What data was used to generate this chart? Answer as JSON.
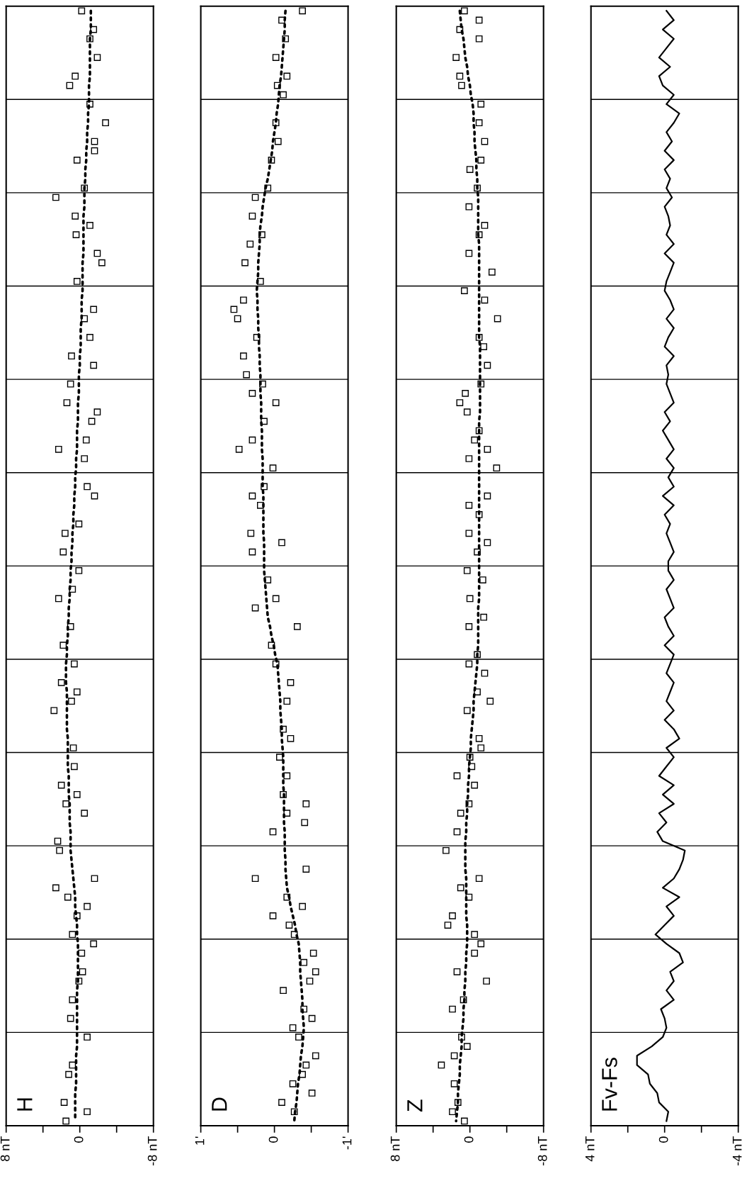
{
  "chart_data": [
    {
      "type": "scatter",
      "title": "H",
      "orientation": "horizontal",
      "categories": [
        null,
        null,
        null,
        null,
        null,
        null,
        null,
        null,
        null,
        null,
        null,
        null,
        null,
        null,
        null,
        null,
        null,
        null,
        null,
        null,
        null,
        null,
        null,
        null,
        null,
        null,
        null,
        null,
        null,
        null,
        null,
        null,
        null,
        null,
        null,
        null,
        null,
        null,
        null,
        null,
        null,
        null,
        null,
        null,
        null,
        null,
        null,
        null,
        null,
        null,
        null,
        null,
        null,
        null,
        null,
        null,
        null,
        null,
        null,
        null,
        null,
        null,
        null,
        null,
        null,
        null,
        null,
        null,
        null,
        null,
        null,
        null,
        null,
        null,
        null,
        null,
        null,
        null,
        null,
        null,
        null,
        null,
        null,
        null,
        null,
        null,
        null,
        null,
        null,
        null,
        null,
        null,
        null,
        null,
        null,
        null,
        null,
        null,
        null,
        null,
        null,
        null,
        null,
        null,
        null,
        null,
        null,
        null,
        null,
        null,
        null,
        null,
        null,
        null,
        null,
        null,
        null,
        null,
        null,
        null
      ],
      "xlim": [
        8,
        -8
      ],
      "xticks": [
        {
          "value": 8,
          "label": "8 nT"
        },
        {
          "value": 4,
          "label": null
        },
        0,
        {
          "value": -4,
          "label": null
        },
        {
          "value": -8,
          "label": "-8 nT"
        }
      ],
      "grid": "y",
      "tick_labels": "x",
      "series": [
        {
          "type": "scatter",
          "color": "#000000",
          "marker": "square",
          "values": [
            -0.2,
            null,
            -1.5,
            -1.1,
            null,
            -1.9,
            null,
            0.5,
            1.1,
            null,
            -1.1,
            null,
            -2.8,
            null,
            -1.6,
            -1.6,
            0.3,
            null,
            null,
            -0.5,
            2.6,
            null,
            0.5,
            -1.1,
            0.4,
            null,
            -1.9,
            -2.4,
            null,
            0.3,
            null,
            null,
            -1.5,
            -0.5,
            null,
            -1.1,
            null,
            0.9,
            -1.5,
            null,
            1.0,
            null,
            1.4,
            -1.9,
            -1.3,
            null,
            -0.7,
            2.3,
            -0.5,
            null,
            null,
            -0.8,
            -1.6,
            null,
            null,
            0.1,
            1.6,
            null,
            1.8,
            null,
            0.1,
            null,
            0.8,
            2.3,
            null,
            null,
            1.0,
            null,
            1.8,
            null,
            0.6,
            null,
            2.0,
            0.3,
            0.9,
            2.8,
            null,
            null,
            null,
            0.7,
            null,
            0.6,
            null,
            2.0,
            0.3,
            1.5,
            -0.5,
            null,
            null,
            2.4,
            2.2,
            null,
            null,
            -1.6,
            2.6,
            1.3,
            -0.8,
            0.3,
            null,
            0.8,
            -1.5,
            -0.2,
            null,
            -0.3,
            0.1,
            null,
            0.8,
            null,
            1.0,
            null,
            -0.8,
            null,
            null,
            0.8,
            1.2,
            null,
            null,
            1.7,
            -0.8,
            1.5
          ]
        },
        {
          "type": "line",
          "color": "#000000",
          "line_style": "dotted",
          "values": [
            -1.2,
            -1.2,
            -1.2,
            -1.1,
            -1.1,
            -1.1,
            -1.1,
            -1.1,
            -1.0,
            -1.0,
            -1.0,
            -0.9,
            -0.9,
            -0.8,
            -0.8,
            -0.7,
            -0.7,
            -0.6,
            -0.6,
            -0.5,
            -0.5,
            -0.5,
            -0.4,
            -0.4,
            -0.4,
            -0.4,
            -0.4,
            -0.3,
            -0.3,
            -0.3,
            -0.3,
            -0.2,
            -0.2,
            -0.2,
            -0.1,
            -0.1,
            -0.1,
            0.0,
            0.0,
            0.1,
            0.1,
            0.1,
            0.2,
            0.2,
            0.2,
            0.3,
            0.3,
            0.3,
            0.4,
            0.4,
            0.5,
            0.5,
            0.6,
            0.6,
            0.7,
            0.7,
            0.8,
            0.8,
            0.9,
            0.9,
            1.0,
            1.0,
            1.1,
            1.1,
            1.2,
            1.2,
            1.3,
            1.3,
            1.4,
            1.4,
            1.5,
            1.5,
            1.5,
            1.4,
            1.4,
            1.4,
            1.4,
            1.4,
            1.3,
            1.3,
            1.3,
            1.3,
            1.2,
            1.2,
            1.2,
            1.1,
            1.1,
            1.1,
            1.0,
            1.0,
            1.0,
            0.9,
            0.8,
            0.7,
            0.6,
            0.5,
            0.5,
            0.4,
            0.3,
            0.3,
            0.2,
            0.2,
            0.2,
            0.2,
            0.2,
            0.3,
            0.3,
            0.3,
            0.3,
            0.3,
            0.3,
            0.3,
            0.4,
            0.4,
            0.4,
            0.4,
            0.5,
            0.5,
            0.5,
            0.5
          ]
        }
      ]
    },
    {
      "type": "scatter",
      "title": "D",
      "orientation": "horizontal",
      "categories": [
        null,
        null,
        null,
        null,
        null,
        null,
        null,
        null,
        null,
        null,
        null,
        null,
        null,
        null,
        null,
        null,
        null,
        null,
        null,
        null,
        null,
        null,
        null,
        null,
        null,
        null,
        null,
        null,
        null,
        null,
        null,
        null,
        null,
        null,
        null,
        null,
        null,
        null,
        null,
        null,
        null,
        null,
        null,
        null,
        null,
        null,
        null,
        null,
        null,
        null,
        null,
        null,
        null,
        null,
        null,
        null,
        null,
        null,
        null,
        null,
        null,
        null,
        null,
        null,
        null,
        null,
        null,
        null,
        null,
        null,
        null,
        null,
        null,
        null,
        null,
        null,
        null,
        null,
        null,
        null,
        null,
        null,
        null,
        null,
        null,
        null,
        null,
        null,
        null,
        null,
        null,
        null,
        null,
        null,
        null,
        null,
        null,
        null,
        null,
        null,
        null,
        null,
        null,
        null,
        null,
        null,
        null,
        null,
        null,
        null,
        null,
        null,
        null,
        null,
        null,
        null,
        null,
        null,
        null,
        null
      ],
      "xlim": [
        1,
        -1
      ],
      "xticks": [
        {
          "value": 1,
          "label": "1'"
        },
        {
          "value": 0.5,
          "label": null
        },
        0,
        {
          "value": -0.5,
          "label": null
        },
        {
          "value": -1,
          "label": "-1'"
        }
      ],
      "grid": "y",
      "tick_labels": "x",
      "series": [
        {
          "type": "scatter",
          "color": "#000000",
          "marker": "square",
          "values": [
            -0.38,
            -0.1,
            null,
            -0.15,
            null,
            -0.02,
            null,
            -0.17,
            -0.04,
            -0.12,
            null,
            null,
            -0.02,
            null,
            -0.05,
            null,
            0.04,
            null,
            null,
            0.09,
            0.26,
            null,
            0.3,
            null,
            0.17,
            0.33,
            null,
            0.4,
            null,
            0.19,
            null,
            0.42,
            0.55,
            0.5,
            null,
            0.24,
            null,
            0.42,
            null,
            0.38,
            0.16,
            0.3,
            -0.02,
            null,
            0.14,
            null,
            0.3,
            0.48,
            null,
            0.02,
            null,
            0.14,
            0.3,
            0.19,
            null,
            null,
            0.32,
            -0.1,
            0.3,
            null,
            null,
            0.09,
            null,
            -0.02,
            0.26,
            null,
            -0.31,
            null,
            0.04,
            null,
            -0.02,
            null,
            -0.22,
            null,
            -0.17,
            null,
            null,
            -0.12,
            -0.22,
            null,
            -0.07,
            null,
            -0.17,
            null,
            -0.12,
            -0.43,
            -0.17,
            -0.41,
            0.02,
            null,
            null,
            null,
            -0.43,
            0.26,
            null,
            -0.17,
            -0.38,
            0.02,
            -0.2,
            -0.27,
            null,
            -0.53,
            -0.4,
            -0.56,
            -0.48,
            -0.12,
            null,
            -0.4,
            -0.51,
            -0.25,
            -0.33,
            null,
            -0.56,
            -0.43,
            -0.38,
            -0.25,
            -0.51,
            -0.1,
            -0.27,
            null
          ]
        },
        {
          "type": "line",
          "color": "#000000",
          "line_style": "dotted",
          "values": [
            -0.15,
            -0.14,
            -0.14,
            -0.13,
            -0.12,
            -0.11,
            -0.1,
            -0.09,
            -0.07,
            -0.06,
            -0.05,
            -0.03,
            -0.02,
            0.0,
            0.02,
            0.03,
            0.05,
            0.07,
            0.09,
            0.12,
            0.14,
            0.16,
            0.17,
            0.19,
            0.2,
            0.2,
            0.21,
            0.22,
            0.22,
            0.23,
            0.24,
            0.23,
            0.23,
            0.22,
            0.22,
            0.21,
            0.21,
            0.2,
            0.2,
            0.19,
            0.19,
            0.19,
            0.18,
            0.18,
            0.18,
            0.17,
            0.17,
            0.17,
            0.16,
            0.16,
            0.16,
            0.16,
            0.15,
            0.15,
            0.15,
            0.15,
            0.15,
            0.14,
            0.14,
            0.14,
            0.14,
            0.13,
            0.12,
            0.11,
            0.1,
            0.09,
            0.06,
            0.04,
            0.01,
            -0.01,
            -0.04,
            -0.05,
            -0.06,
            -0.07,
            -0.08,
            -0.08,
            -0.09,
            -0.1,
            -0.1,
            -0.11,
            -0.12,
            -0.12,
            -0.12,
            -0.12,
            -0.13,
            -0.13,
            -0.13,
            -0.13,
            -0.14,
            -0.14,
            -0.14,
            -0.15,
            -0.15,
            -0.16,
            -0.17,
            -0.2,
            -0.22,
            -0.25,
            -0.28,
            -0.3,
            -0.33,
            -0.34,
            -0.35,
            -0.35,
            -0.36,
            -0.37,
            -0.38,
            -0.38,
            -0.39,
            -0.4,
            -0.39,
            -0.38,
            -0.36,
            -0.35,
            -0.34,
            -0.32,
            -0.31,
            -0.3,
            -0.28,
            -0.27
          ]
        }
      ]
    },
    {
      "type": "scatter",
      "title": "Z",
      "orientation": "horizontal",
      "categories": [
        null,
        null,
        null,
        null,
        null,
        null,
        null,
        null,
        null,
        null,
        null,
        null,
        null,
        null,
        null,
        null,
        null,
        null,
        null,
        null,
        null,
        null,
        null,
        null,
        null,
        null,
        null,
        null,
        null,
        null,
        null,
        null,
        null,
        null,
        null,
        null,
        null,
        null,
        null,
        null,
        null,
        null,
        null,
        null,
        null,
        null,
        null,
        null,
        null,
        null,
        null,
        null,
        null,
        null,
        null,
        null,
        null,
        null,
        null,
        null,
        null,
        null,
        null,
        null,
        null,
        null,
        null,
        null,
        null,
        null,
        null,
        null,
        null,
        null,
        null,
        null,
        null,
        null,
        null,
        null,
        null,
        null,
        null,
        null,
        null,
        null,
        null,
        null,
        null,
        null,
        null,
        null,
        null,
        null,
        null,
        null,
        null,
        null,
        null,
        null,
        null,
        null,
        null,
        null,
        null,
        null,
        null,
        null,
        null,
        null,
        null,
        null,
        null,
        null,
        null,
        null,
        null,
        null,
        null,
        null
      ],
      "xlim": [
        8,
        -8
      ],
      "xticks": [
        {
          "value": 8,
          "label": "8 nT"
        },
        {
          "value": 4,
          "label": null
        },
        0,
        {
          "value": -4,
          "label": null
        },
        {
          "value": -8,
          "label": "-8 nT"
        }
      ],
      "grid": "y",
      "tick_labels": "x",
      "series": [
        {
          "type": "scatter",
          "color": "#000000",
          "marker": "square",
          "values": [
            0.6,
            -1.0,
            1.1,
            -1.0,
            null,
            1.5,
            null,
            1.1,
            0.9,
            null,
            -1.2,
            null,
            -1.0,
            null,
            -1.6,
            null,
            -1.2,
            0,
            null,
            -0.8,
            null,
            0.1,
            null,
            -1.6,
            -1.0,
            null,
            0.1,
            null,
            -2.4,
            null,
            0.6,
            -1.6,
            null,
            -3.0,
            null,
            -1.0,
            -1.5,
            null,
            -1.9,
            null,
            -1.2,
            0.5,
            1.1,
            0.3,
            null,
            -1.0,
            -0.5,
            -1.9,
            0.1,
            -2.9,
            null,
            null,
            -1.9,
            0.1,
            -1.0,
            null,
            0.1,
            -1.9,
            -0.8,
            null,
            0.3,
            -1.4,
            null,
            0,
            null,
            -1.5,
            0.1,
            null,
            null,
            -0.8,
            0.1,
            -1.6,
            null,
            -0.8,
            -2.2,
            0.3,
            null,
            null,
            -1.0,
            -1.2,
            0,
            -0.2,
            1.4,
            -0.5,
            null,
            0.1,
            1.0,
            null,
            1.4,
            null,
            2.6,
            null,
            null,
            -1.0,
            1.0,
            0.1,
            null,
            1.9,
            2.4,
            -0.5,
            -1.2,
            -0.5,
            null,
            1.4,
            -1.8,
            null,
            0.7,
            1.9,
            null,
            null,
            0.9,
            0.3,
            1.7,
            3.1,
            null,
            1.7,
            null,
            1.3,
            1.9,
            0.6
          ]
        },
        {
          "type": "line",
          "color": "#000000",
          "line_style": "dotted",
          "values": [
            1.1,
            1.0,
            0.9,
            0.7,
            0.6,
            0.5,
            0.3,
            0.2,
            0.0,
            -0.1,
            -0.3,
            -0.4,
            -0.4,
            -0.5,
            -0.5,
            -0.6,
            -0.7,
            -0.7,
            -0.8,
            -0.8,
            -0.9,
            -0.9,
            -0.9,
            -0.9,
            -0.9,
            -1.0,
            -1.0,
            -1.0,
            -1.0,
            -1.0,
            -1.0,
            -1.0,
            -1.0,
            -1.0,
            -1.0,
            -1.0,
            -1.1,
            -1.1,
            -1.1,
            -1.1,
            -1.1,
            -1.1,
            -1.1,
            -1.1,
            -1.0,
            -1.0,
            -1.0,
            -1.0,
            -1.0,
            -1.0,
            -1.0,
            -1.0,
            -1.0,
            -1.0,
            -1.0,
            -1.0,
            -1.0,
            -1.0,
            -1.0,
            -1.0,
            -1.0,
            -1.0,
            -1.0,
            -1.0,
            -0.9,
            -0.9,
            -0.9,
            -0.9,
            -0.9,
            -0.8,
            -0.8,
            -0.7,
            -0.6,
            -0.5,
            -0.4,
            -0.4,
            -0.3,
            -0.2,
            -0.1,
            -0.1,
            0.0,
            0.1,
            0.1,
            0.2,
            0.2,
            0.3,
            0.3,
            0.4,
            0.4,
            0.5,
            0.5,
            0.5,
            0.5,
            0.4,
            0.4,
            0.4,
            0.4,
            0.4,
            0.3,
            0.3,
            0.3,
            0.4,
            0.4,
            0.5,
            0.5,
            0.6,
            0.6,
            0.7,
            0.7,
            0.8,
            0.9,
            0.9,
            1.0,
            1.1,
            1.1,
            1.2,
            1.3,
            1.3,
            1.4,
            1.5
          ]
        }
      ]
    },
    {
      "type": "line",
      "title": "Fv-Fs",
      "orientation": "horizontal",
      "categories": [
        null,
        null,
        null,
        null,
        null,
        null,
        null,
        null,
        null,
        null,
        null,
        null,
        null,
        null,
        null,
        null,
        null,
        null,
        null,
        null,
        null,
        null,
        null,
        null,
        null,
        null,
        null,
        null,
        null,
        null,
        null,
        null,
        null,
        null,
        null,
        null,
        null,
        null,
        null,
        null,
        null,
        null,
        null,
        null,
        null,
        null,
        null,
        null,
        null,
        null,
        null,
        null,
        null,
        null,
        null,
        null,
        null,
        null,
        null,
        null,
        null,
        null,
        null,
        null,
        null,
        null,
        null,
        null,
        null,
        null,
        null,
        null,
        null,
        null,
        null,
        null,
        null,
        null,
        null,
        null,
        null,
        null,
        null,
        null,
        null,
        null,
        null,
        null,
        null,
        null,
        null,
        null,
        null,
        null,
        null,
        null,
        null,
        null,
        null,
        null,
        null,
        null,
        null,
        null,
        null,
        null,
        null,
        null,
        null,
        null,
        null,
        null,
        null,
        null,
        null,
        null,
        null,
        null,
        null,
        null
      ],
      "xlim": [
        4,
        -4
      ],
      "xticks": [
        {
          "value": 4,
          "label": "4 nT"
        },
        {
          "value": 2,
          "label": null
        },
        0,
        {
          "value": -2,
          "label": null
        },
        {
          "value": -4,
          "label": "-4 nT"
        }
      ],
      "grid": "y",
      "tick_labels": "x",
      "line_style": "solid",
      "series": [
        {
          "color": "#000000",
          "values": [
            -0.1,
            -0.5,
            0.1,
            -0.5,
            -0.1,
            0.3,
            -0.3,
            0.3,
            0.1,
            -0.5,
            -0.1,
            -0.8,
            -0.5,
            -0.1,
            -0.4,
            0.0,
            -0.5,
            0.0,
            -0.3,
            -0.1,
            -0.4,
            0.0,
            -0.2,
            -0.3,
            -0.1,
            -0.5,
            0.0,
            -0.5,
            -0.3,
            -0.1,
            0.0,
            -0.3,
            -0.5,
            -0.1,
            -0.5,
            -0.2,
            0.0,
            -0.5,
            -0.1,
            -0.2,
            -0.1,
            -0.3,
            -0.5,
            0.0,
            -0.3,
            0.1,
            -0.2,
            -0.5,
            -0.1,
            -0.5,
            -0.2,
            -0.5,
            0.1,
            -0.5,
            0.0,
            -0.3,
            -0.1,
            -0.3,
            -0.5,
            -0.2,
            -0.2,
            -0.5,
            -0.1,
            -0.3,
            -0.5,
            0.0,
            -0.2,
            -0.5,
            0.0,
            -0.5,
            -0.3,
            -0.1,
            -0.5,
            -0.3,
            -0.1,
            -0.5,
            0.0,
            -0.5,
            -0.8,
            -0.1,
            -0.5,
            -0.1,
            0.3,
            -0.5,
            0.1,
            -0.5,
            0.3,
            -0.1,
            0.4,
            0.1,
            -1.1,
            -1.0,
            -0.8,
            -0.5,
            0.1,
            -0.8,
            -0.1,
            -0.5,
            0.0,
            0.5,
            -0.1,
            -0.8,
            -1.0,
            -0.3,
            -0.5,
            -0.1,
            -0.5,
            0.2,
            0.0,
            -0.1,
            0.1,
            0.7,
            1.5,
            1.5,
            0.9,
            0.8,
            0.4,
            0.3,
            -0.2,
            -0.1
          ]
        }
      ]
    }
  ]
}
